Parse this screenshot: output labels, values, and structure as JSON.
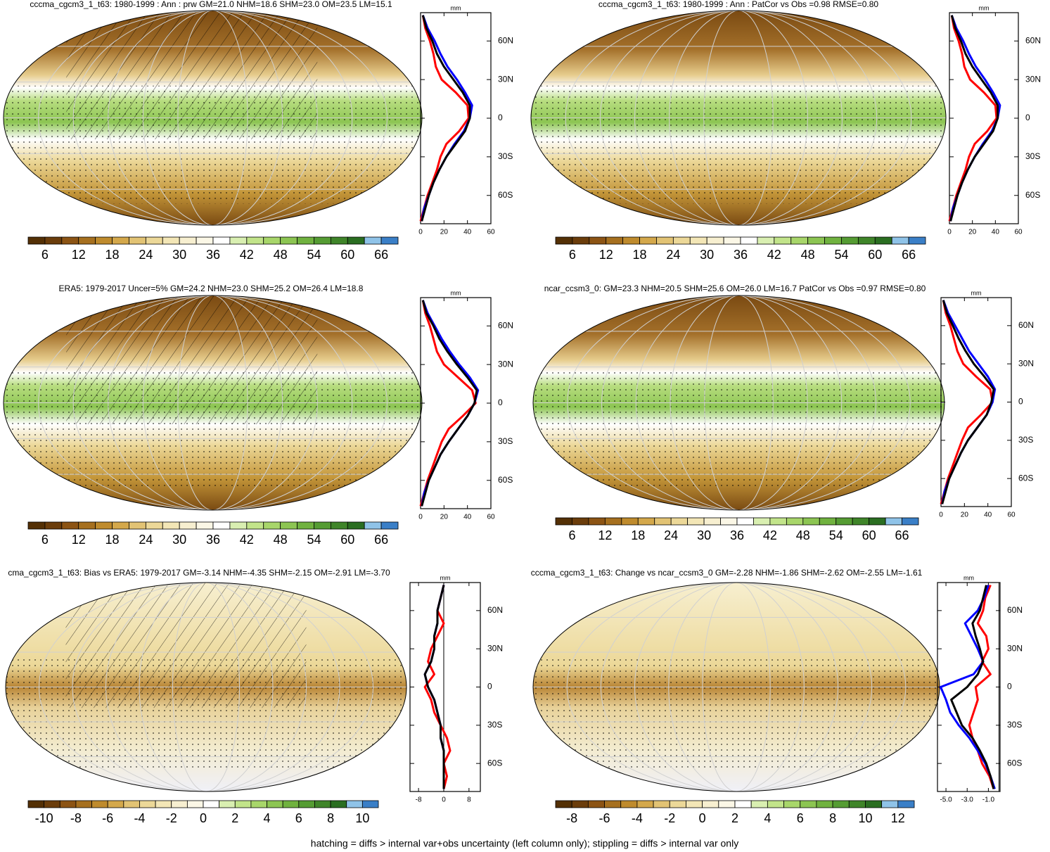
{
  "chart_data": [
    {
      "type": "profile",
      "title": "cccma_cgcm3_1_t63: 1980-1999 : Ann : prw GM=21.0 NHM=18.6 SHM=23.0 OM=23.5 LM=15.1",
      "unit": "mm",
      "colorbar": {
        "lim": [
          3,
          69
        ],
        "ticks": [
          6,
          12,
          18,
          24,
          30,
          36,
          42,
          48,
          54,
          60,
          66
        ],
        "colors": [
          "#543005",
          "#6b3d0b",
          "#8c5414",
          "#a6701f",
          "#bf8b2d",
          "#d4a84b",
          "#e2c374",
          "#ecd898",
          "#f3e6b6",
          "#f7efd0",
          "#fbf7e6",
          "#ffffff",
          "#d9efb1",
          "#c2e48a",
          "#a8d66a",
          "#8cc552",
          "#70b23f",
          "#559c33",
          "#3f8529",
          "#2a6e21",
          "#8fc3e8",
          "#3a7fc7"
        ]
      },
      "xlim": [
        0,
        60
      ],
      "xticks": [
        0,
        20,
        40,
        60
      ],
      "ylim": [
        -82,
        82
      ],
      "yticks": [
        {
          "value": 60,
          "label": "60N"
        },
        {
          "value": 30,
          "label": "30N"
        },
        0,
        {
          "value": -30,
          "label": "30S"
        },
        {
          "value": -60,
          "label": "60S"
        }
      ],
      "y": [
        80,
        70,
        60,
        50,
        40,
        30,
        20,
        10,
        0,
        -10,
        -20,
        -30,
        -40,
        -50,
        -60,
        -70,
        -80
      ],
      "series": [
        {
          "color": "#ff0000",
          "values": [
            2,
            4,
            8,
            11,
            13,
            18,
            30,
            40,
            41,
            33,
            22,
            17,
            14,
            10,
            6,
            3,
            0
          ]
        },
        {
          "color": "#0000ff",
          "values": [
            2,
            6,
            12,
            17,
            23,
            31,
            38,
            44,
            42,
            37,
            29,
            22,
            16,
            11,
            7,
            3,
            1
          ]
        },
        {
          "color": "#000000",
          "values": [
            2,
            5,
            10,
            14,
            20,
            28,
            36,
            42,
            42,
            38,
            30,
            22,
            16,
            11,
            7,
            4,
            1
          ]
        }
      ]
    },
    {
      "type": "profile",
      "title": "cccma_cgcm3_1_t63: 1980-1999 : Ann : PatCor vs Obs =0.98 RMSE=0.80",
      "unit": "mm",
      "colorbar": {
        "lim": [
          3,
          69
        ],
        "ticks": [
          6,
          12,
          18,
          24,
          30,
          36,
          42,
          48,
          54,
          60,
          66
        ],
        "colors": [
          "#543005",
          "#6b3d0b",
          "#8c5414",
          "#a6701f",
          "#bf8b2d",
          "#d4a84b",
          "#e2c374",
          "#ecd898",
          "#f3e6b6",
          "#f7efd0",
          "#fbf7e6",
          "#ffffff",
          "#d9efb1",
          "#c2e48a",
          "#a8d66a",
          "#8cc552",
          "#70b23f",
          "#559c33",
          "#3f8529",
          "#2a6e21",
          "#8fc3e8",
          "#3a7fc7"
        ]
      },
      "xlim": [
        0,
        60
      ],
      "xticks": [
        0,
        20,
        40,
        60
      ],
      "ylim": [
        -82,
        82
      ],
      "yticks": [
        {
          "value": 60,
          "label": "60N"
        },
        {
          "value": 30,
          "label": "30N"
        },
        0,
        {
          "value": -30,
          "label": "30S"
        },
        {
          "value": -60,
          "label": "60S"
        }
      ],
      "y": [
        80,
        70,
        60,
        50,
        40,
        30,
        20,
        10,
        0,
        -10,
        -20,
        -30,
        -40,
        -50,
        -60,
        -70,
        -80
      ],
      "series": [
        {
          "color": "#ff0000",
          "values": [
            2,
            4,
            8,
            11,
            13,
            18,
            30,
            40,
            41,
            33,
            22,
            17,
            14,
            10,
            6,
            3,
            0
          ]
        },
        {
          "color": "#0000ff",
          "values": [
            2,
            6,
            12,
            17,
            23,
            31,
            38,
            44,
            42,
            37,
            29,
            22,
            16,
            11,
            7,
            3,
            1
          ]
        },
        {
          "color": "#000000",
          "values": [
            2,
            5,
            10,
            14,
            20,
            28,
            36,
            42,
            42,
            38,
            30,
            22,
            16,
            11,
            7,
            4,
            1
          ]
        }
      ]
    },
    {
      "type": "profile",
      "title": "ERA5: 1979-2017 Uncer=5% GM=24.2 NHM=23.0 SHM=25.2 OM=26.4 LM=18.8",
      "unit": "mm",
      "colorbar": {
        "lim": [
          3,
          69
        ],
        "ticks": [
          6,
          12,
          18,
          24,
          30,
          36,
          42,
          48,
          54,
          60,
          66
        ],
        "colors": [
          "#543005",
          "#6b3d0b",
          "#8c5414",
          "#a6701f",
          "#bf8b2d",
          "#d4a84b",
          "#e2c374",
          "#ecd898",
          "#f3e6b6",
          "#f7efd0",
          "#fbf7e6",
          "#ffffff",
          "#d9efb1",
          "#c2e48a",
          "#a8d66a",
          "#8cc552",
          "#70b23f",
          "#559c33",
          "#3f8529",
          "#2a6e21",
          "#8fc3e8",
          "#3a7fc7"
        ]
      },
      "xlim": [
        0,
        60
      ],
      "xticks": [
        0,
        20,
        40,
        60
      ],
      "ylim": [
        -82,
        82
      ],
      "yticks": [
        {
          "value": 60,
          "label": "60N"
        },
        {
          "value": 30,
          "label": "30N"
        },
        0,
        {
          "value": -30,
          "label": "30S"
        },
        {
          "value": -60,
          "label": "60S"
        }
      ],
      "y": [
        80,
        70,
        60,
        50,
        40,
        30,
        20,
        10,
        0,
        -10,
        -20,
        -30,
        -40,
        -50,
        -60,
        -70,
        -80
      ],
      "series": [
        {
          "color": "#ff0000",
          "values": [
            2,
            4,
            8,
            11,
            14,
            20,
            32,
            44,
            47,
            36,
            24,
            18,
            14,
            10,
            6,
            3,
            0
          ]
        },
        {
          "color": "#0000ff",
          "values": [
            2,
            6,
            12,
            18,
            25,
            33,
            42,
            49,
            46,
            40,
            32,
            24,
            17,
            12,
            7,
            3,
            1
          ]
        },
        {
          "color": "#000000",
          "values": [
            2,
            5,
            11,
            16,
            23,
            31,
            40,
            48,
            46,
            40,
            32,
            24,
            17,
            12,
            7,
            4,
            1
          ]
        }
      ]
    },
    {
      "type": "profile",
      "title": "ncar_ccsm3_0: GM=23.3 NHM=20.5 SHM=25.6 OM=26.0 LM=16.7 PatCor vs Obs =0.97 RMSE=0.80",
      "unit": "mm",
      "colorbar": {
        "lim": [
          3,
          69
        ],
        "ticks": [
          6,
          12,
          18,
          24,
          30,
          36,
          42,
          48,
          54,
          60,
          66
        ],
        "colors": [
          "#543005",
          "#6b3d0b",
          "#8c5414",
          "#a6701f",
          "#bf8b2d",
          "#d4a84b",
          "#e2c374",
          "#ecd898",
          "#f3e6b6",
          "#f7efd0",
          "#fbf7e6",
          "#ffffff",
          "#d9efb1",
          "#c2e48a",
          "#a8d66a",
          "#8cc552",
          "#70b23f",
          "#559c33",
          "#3f8529",
          "#2a6e21",
          "#8fc3e8",
          "#3a7fc7"
        ]
      },
      "xlim": [
        0,
        60
      ],
      "xticks": [
        0,
        20,
        40,
        60
      ],
      "ylim": [
        -82,
        82
      ],
      "yticks": [
        {
          "value": 60,
          "label": "60N"
        },
        {
          "value": 30,
          "label": "30N"
        },
        0,
        {
          "value": -30,
          "label": "30S"
        },
        {
          "value": -60,
          "label": "60S"
        }
      ],
      "y": [
        80,
        70,
        60,
        50,
        40,
        30,
        20,
        10,
        0,
        -10,
        -20,
        -30,
        -40,
        -50,
        -60,
        -70,
        -80
      ],
      "series": [
        {
          "color": "#ff0000",
          "values": [
            2,
            4,
            8,
            11,
            14,
            19,
            30,
            42,
            44,
            34,
            23,
            18,
            14,
            10,
            6,
            3,
            0
          ]
        },
        {
          "color": "#0000ff",
          "values": [
            2,
            6,
            12,
            18,
            24,
            32,
            40,
            46,
            44,
            39,
            31,
            23,
            17,
            12,
            7,
            3,
            1
          ]
        },
        {
          "color": "#000000",
          "values": [
            2,
            5,
            10,
            15,
            21,
            28,
            37,
            45,
            43,
            39,
            31,
            23,
            17,
            12,
            7,
            4,
            1
          ]
        }
      ]
    },
    {
      "type": "profile",
      "title": "cma_cgcm3_1_t63: Bias vs ERA5: 1979-2017 GM=-3.14 NHM=-4.35 SHM=-2.15 OM=-2.91 LM=-3.70",
      "unit": "mm",
      "colorbar": {
        "lim": [
          -11,
          11
        ],
        "ticks": [
          -10,
          -8,
          -6,
          -4,
          -2,
          0,
          2,
          4,
          6,
          8,
          10
        ],
        "colors": [
          "#543005",
          "#6b3d0b",
          "#8c5414",
          "#a6701f",
          "#bf8b2d",
          "#d4a84b",
          "#e2c374",
          "#ecd898",
          "#f3e6b6",
          "#f7efd0",
          "#fbf7e6",
          "#ffffff",
          "#d9efb1",
          "#c2e48a",
          "#a8d66a",
          "#8cc552",
          "#70b23f",
          "#559c33",
          "#3f8529",
          "#2a6e21",
          "#8fc3e8",
          "#3a7fc7"
        ]
      },
      "xlim": [
        -10.7,
        11.6
      ],
      "xticks": [
        -8,
        0,
        8
      ],
      "ylim": [
        -82,
        82
      ],
      "yticks": [
        {
          "value": 60,
          "label": "60N"
        },
        {
          "value": 30,
          "label": "30N"
        },
        0,
        {
          "value": -30,
          "label": "30S"
        },
        {
          "value": -60,
          "label": "60S"
        }
      ],
      "y": [
        80,
        70,
        60,
        50,
        40,
        30,
        20,
        10,
        0,
        -10,
        -20,
        -30,
        -40,
        -50,
        -60,
        -70,
        -80
      ],
      "series": [
        {
          "color": "#ff0000",
          "values": [
            0,
            -1,
            -2,
            0,
            -2,
            -4,
            -5,
            -3,
            -6,
            -4,
            -3,
            -1,
            1,
            2,
            0,
            1,
            0
          ]
        },
        {
          "color": "#0000ff",
          "values": [
            0,
            -1,
            -2,
            -2,
            -3,
            -3,
            -4,
            -6,
            -5,
            -3,
            -2,
            -1,
            -1,
            0,
            0,
            0,
            0
          ]
        },
        {
          "color": "#000000",
          "values": [
            0,
            -1,
            -2,
            -2,
            -3,
            -3,
            -4,
            -6,
            -5,
            -3,
            -2,
            -1,
            -1,
            0,
            0,
            0,
            0
          ]
        }
      ]
    },
    {
      "type": "profile",
      "title": "cccma_cgcm3_1_t63: Change vs ncar_ccsm3_0 GM=-2.28 NHM=-1.86 SHM=-2.62 OM=-2.55 LM=-1.61",
      "unit": "mm",
      "colorbar": {
        "lim": [
          -9,
          13
        ],
        "ticks": [
          -8,
          -6,
          -4,
          -2,
          0,
          2,
          4,
          6,
          8,
          10,
          12
        ],
        "colors": [
          "#543005",
          "#6b3d0b",
          "#8c5414",
          "#a6701f",
          "#bf8b2d",
          "#d4a84b",
          "#e2c374",
          "#ecd898",
          "#f3e6b6",
          "#f7efd0",
          "#fbf7e6",
          "#ffffff",
          "#d9efb1",
          "#c2e48a",
          "#a8d66a",
          "#8cc552",
          "#70b23f",
          "#559c33",
          "#3f8529",
          "#2a6e21",
          "#8fc3e8",
          "#3a7fc7"
        ]
      },
      "xlim": [
        -5.8,
        0.1
      ],
      "xticks": [
        {
          "value": -5,
          "label": "-5.0"
        },
        {
          "value": -3,
          "label": "-3.0"
        },
        {
          "value": -1,
          "label": "-1.0"
        }
      ],
      "ylim": [
        -82,
        82
      ],
      "yticks": [
        {
          "value": 60,
          "label": "60N"
        },
        {
          "value": 30,
          "label": "30N"
        },
        0,
        {
          "value": -30,
          "label": "30S"
        },
        {
          "value": -60,
          "label": "60S"
        }
      ],
      "y": [
        80,
        70,
        60,
        50,
        40,
        30,
        20,
        10,
        0,
        -10,
        -20,
        -30,
        -40,
        -50,
        -60,
        -70,
        -80
      ],
      "series": [
        {
          "color": "#ff0000",
          "values": [
            -0.8,
            -1.3,
            -1.5,
            -2.0,
            -1.2,
            -1.0,
            -1.6,
            -0.8,
            -2.2,
            -2.0,
            -2.4,
            -2.8,
            -2.5,
            -2.0,
            -1.6,
            -0.9,
            -0.5
          ]
        },
        {
          "color": "#0000ff",
          "values": [
            -1.0,
            -1.4,
            -2.0,
            -3.2,
            -2.6,
            -2.0,
            -1.5,
            -2.4,
            -5.5,
            -5.0,
            -4.6,
            -3.8,
            -2.8,
            -2.0,
            -1.3,
            -0.8,
            -0.4
          ]
        },
        {
          "color": "#000000",
          "values": [
            -1.2,
            -1.5,
            -1.8,
            -2.5,
            -2.2,
            -1.8,
            -1.5,
            -2.0,
            -3.0,
            -4.5,
            -4.0,
            -3.5,
            -2.5,
            -1.8,
            -1.2,
            -0.8,
            -0.5
          ]
        }
      ]
    }
  ],
  "footer": "hatching = diffs > internal var+obs uncertainty (left column only); stippling = diffs > internal var only"
}
